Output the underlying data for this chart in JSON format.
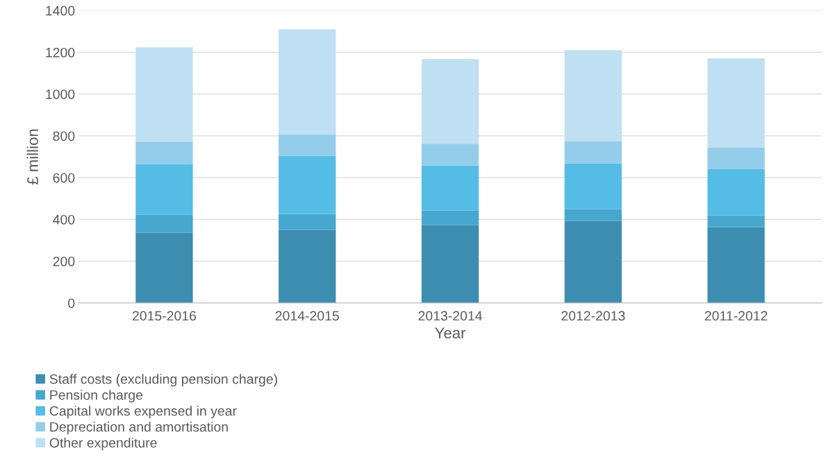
{
  "chart_data": {
    "type": "bar",
    "stacked": true,
    "xlabel": "Year",
    "ylabel": "£ million",
    "categories": [
      "2015-2016",
      "2014-2015",
      "2013-2014",
      "2012-2013",
      "2011-2012"
    ],
    "series": [
      {
        "name": "Staff costs (excluding pension charge)",
        "color": "#3d8db0",
        "values": [
          336,
          349,
          372,
          392,
          362
        ]
      },
      {
        "name": "Pension charge",
        "color": "#47a7cf",
        "values": [
          86,
          77,
          70,
          57,
          57
        ]
      },
      {
        "name": "Capital works expensed in year",
        "color": "#55bce6",
        "values": [
          243,
          279,
          216,
          219,
          223
        ]
      },
      {
        "name": "Depreciation and amortisation",
        "color": "#94cdea",
        "values": [
          107,
          103,
          104,
          107,
          103
        ]
      },
      {
        "name": "Other expenditure",
        "color": "#bfdff2",
        "values": [
          452,
          502,
          405,
          435,
          426
        ]
      }
    ],
    "ylim": [
      0,
      1400
    ],
    "yticks": [
      0,
      200,
      400,
      600,
      800,
      1000,
      1200,
      1400
    ],
    "grid": "y",
    "legend": "bottom"
  }
}
